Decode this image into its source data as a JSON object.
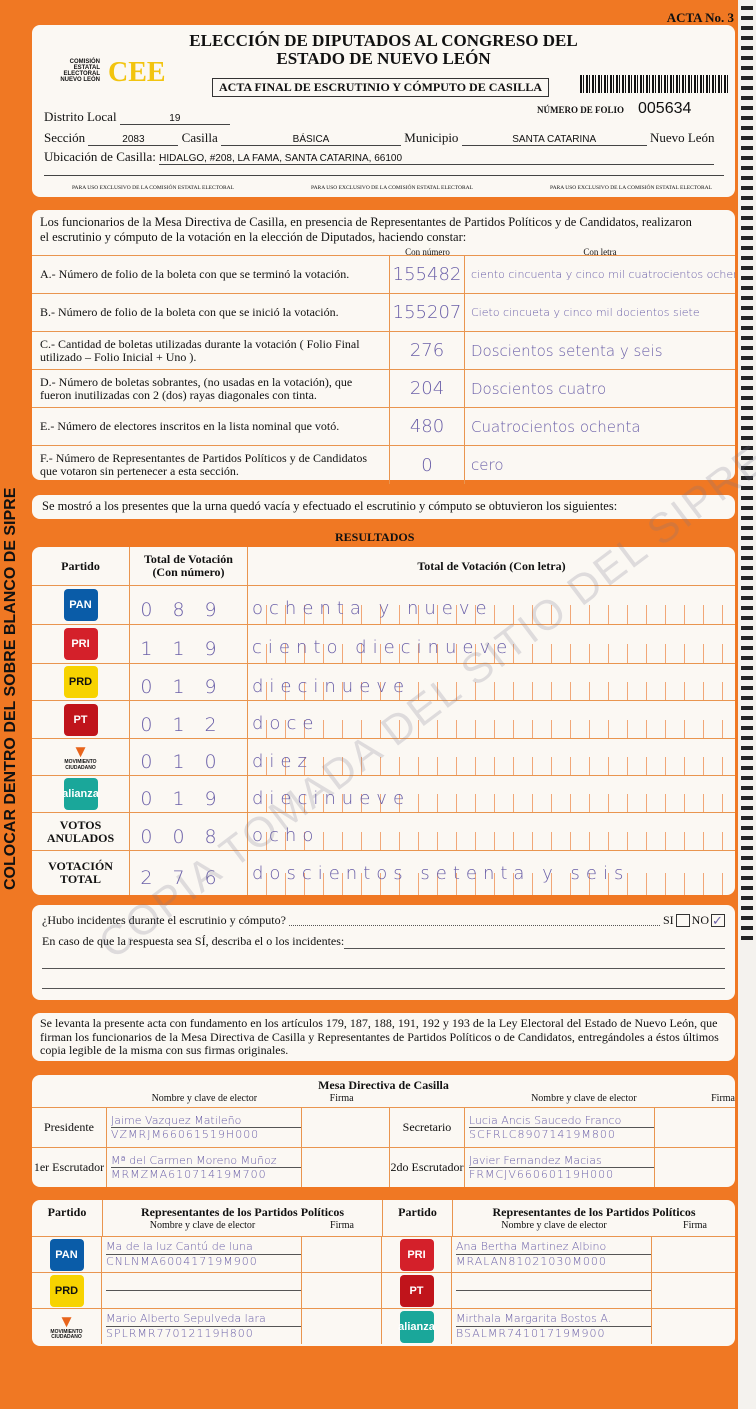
{
  "header": {
    "acta_no": "ACTA No. 3",
    "title1": "ELECCIÓN DE DIPUTADOS AL CONGRESO DEL",
    "title2": "ESTADO DE NUEVO LEÓN",
    "org": "COMISIÓN ESTATAL ELECTORAL NUEVO LEÓN",
    "logo": "CEE",
    "subtitle": "ACTA FINAL DE ESCRUTINIO Y CÓMPUTO DE CASILLA",
    "folio_label": "NÚMERO DE FOLIO",
    "folio": "005634",
    "distrito_label": "Distrito Local",
    "distrito": "19",
    "seccion_label": "Sección",
    "seccion": "2083",
    "casilla_label": "Casilla",
    "casilla": "BÁSICA",
    "municipio_label": "Municipio",
    "municipio": "SANTA CATARINA",
    "estado": "Nuevo León",
    "ubicacion_label": "Ubicación de Casilla:",
    "ubicacion": "HIDALGO, #208, LA FAMA, SANTA CATARINA, 66100",
    "uso": "PARA USO EXCLUSIVO DE LA COMISIÓN ESTATAL ELECTORAL"
  },
  "escrutinio": {
    "intro1": "Los funcionarios de la Mesa Directiva de Casilla, en presencia de Representantes de Partidos Políticos  y de Candidatos, realizaron",
    "intro2": "el escrutinio y cómputo de la votación en la elección de Diputados, haciendo constar:",
    "col_num": "Con número",
    "col_letra": "Con letra",
    "rows": [
      {
        "label": "A.- Número de folio de la boleta con que se terminó la votación.",
        "num": "155482",
        "letra": "ciento cincuenta y cinco mil cuatrocientos ochenta y dos"
      },
      {
        "label": "B.- Número de folio de la boleta con que se inició la votación.",
        "num": "155207",
        "letra": "Cieto cincueta y cinco mil docientos siete"
      },
      {
        "label": "C.- Cantidad de boletas utilizadas durante la votación ( Folio Final utilizado – Folio Inicial + Uno ).",
        "num": "276",
        "letra": "Doscientos setenta y seis"
      },
      {
        "label": "D.- Número de boletas sobrantes, (no usadas en la votación), que fueron inutilizadas con 2 (dos) rayas diagonales con tinta.",
        "num": "204",
        "letra": "Doscientos cuatro"
      },
      {
        "label": "E.- Número de electores inscritos en la lista nominal que votó.",
        "num": "480",
        "letra": "Cuatrocientos ochenta"
      },
      {
        "label": "F.- Número de Representantes de Partidos Políticos y de Candidatos que votaron sin pertenecer a esta sección.",
        "num": "0",
        "letra": "cero"
      }
    ]
  },
  "urna_note": "Se mostró a los presentes que la urna quedó vacía y efectuado el escrutinio y cómputo se obtuvieron los siguientes:",
  "resultados": {
    "title": "RESULTADOS",
    "col_partido": "Partido",
    "col_num": "Total de Votación (Con número)",
    "col_letra": "Total de Votación (Con letra)",
    "rows": [
      {
        "partido": "PAN",
        "color": "#0a5ca8",
        "num": "089",
        "letra": "ochenta y nueve"
      },
      {
        "partido": "PRI",
        "color": "#d4202a",
        "num": "119",
        "letra": "ciento diecinueve"
      },
      {
        "partido": "PRD",
        "color": "#f7d300",
        "num": "019",
        "letra": "diecinueve"
      },
      {
        "partido": "PT",
        "color": "#c0141b",
        "num": "012",
        "letra": "doce"
      },
      {
        "partido": "MOVIMIENTO CIUDADANO",
        "color": "#e8641b",
        "num": "010",
        "letra": "diez"
      },
      {
        "partido": "alianza",
        "color": "#1aa79a",
        "num": "019",
        "letra": "diecinueve"
      },
      {
        "partido": "VOTOS ANULADOS",
        "color": "",
        "num": "008",
        "letra": "ocho"
      },
      {
        "partido": "VOTACIÓN TOTAL",
        "color": "",
        "num": "276",
        "letra": "doscientos setenta y seis"
      }
    ]
  },
  "incidentes": {
    "question": "¿Hubo incidentes durante el escrutinio y cómputo?",
    "si": "SI",
    "no": "NO",
    "no_checked": true,
    "describe": "En caso de que la respuesta sea SÍ, describa el o los incidentes:"
  },
  "legal": "Se levanta la presente acta con fundamento en los artículos 179, 187, 188, 191, 192 y 193 de la Ley Electoral del Estado de Nuevo León, que firman los funcionarios de la Mesa Directiva de Casilla y Representantes de  Partidos Políticos o de Candidatos, entregándoles a éstos últimos copia legible de la misma con sus firmas originales.",
  "mesa": {
    "title": "Mesa Directiva de Casilla",
    "col_nombre": "Nombre y clave de elector",
    "col_firma": "Firma",
    "members": [
      {
        "role": "Presidente",
        "nombre": "Jaime Vazquez Matileño",
        "clave": "VZMRJM66061519H000"
      },
      {
        "role": "Secretario",
        "nombre": "Lucia Ancis Saucedo Franco",
        "clave": "SCFRLC89071419M800"
      },
      {
        "role": "1er Escrutador",
        "nombre": "Mª del Carmen Moreno Muñoz",
        "clave": "MRMZMA61071419M700"
      },
      {
        "role": "2do Escrutador",
        "nombre": "Javier Fernandez Macias",
        "clave": "FRMCJV66060119H000"
      }
    ]
  },
  "reps": {
    "col_partido": "Partido",
    "col_title": "Representantes de los Partidos Políticos",
    "col_nombre": "Nombre y clave de elector",
    "col_firma": "Firma",
    "rows": [
      {
        "partido": "PAN",
        "color": "#0a5ca8",
        "nombre": "Ma de la luz Cantú de luna",
        "clave": "CNLNMA60041719M900"
      },
      {
        "partido": "PRI",
        "color": "#d4202a",
        "nombre": "Ana Bertha Martinez Albino",
        "clave": "MRALAN81021030M000"
      },
      {
        "partido": "PRD",
        "color": "#f7d300",
        "nombre": "",
        "clave": ""
      },
      {
        "partido": "PT",
        "color": "#c0141b",
        "nombre": "",
        "clave": ""
      },
      {
        "partido": "MOVIMIENTO CIUDADANO",
        "color": "#e8641b",
        "nombre": "Mario Alberto Sepulveda lara",
        "clave": "SPLRMR77012119H800"
      },
      {
        "partido": "alianza",
        "color": "#1aa79a",
        "nombre": "Mirthala Margarita Bostos A.",
        "clave": "BSALMR74101719M900"
      }
    ]
  },
  "side_text": "COLOCAR DENTRO DEL SOBRE BLANCO DE SIPRE",
  "watermark": "COPIA TOMADA DEL SITIO DEL SIPRE"
}
